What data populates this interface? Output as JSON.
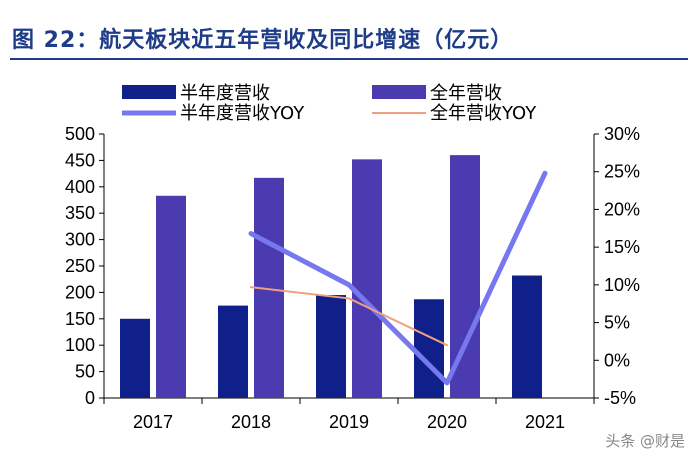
{
  "title": "图 22：航天板块近五年营收及同比增速（亿元）",
  "watermark": "头条 @财是",
  "chart_data": {
    "type": "bar",
    "categories": [
      "2017",
      "2018",
      "2019",
      "2020",
      "2021"
    ],
    "series": [
      {
        "name": "半年度营收",
        "kind": "bar",
        "axis": "left",
        "color": "#10208a",
        "values": [
          150,
          175,
          195,
          187,
          232
        ]
      },
      {
        "name": "全年营收",
        "kind": "bar",
        "axis": "left",
        "color": "#4a3bb0",
        "values": [
          383,
          417,
          452,
          460,
          null
        ]
      },
      {
        "name": "半年度营收YOY",
        "kind": "line",
        "axis": "right",
        "color": "#7777f0",
        "values": [
          null,
          16.8,
          10.0,
          -3.0,
          24.8
        ]
      },
      {
        "name": "全年营收YOY",
        "kind": "line",
        "axis": "right",
        "color": "#f0a080",
        "values": [
          null,
          9.7,
          8.2,
          2.0,
          null
        ]
      }
    ],
    "y_left": {
      "ylim": [
        0,
        500
      ],
      "ticks": [
        "0",
        "50",
        "100",
        "150",
        "200",
        "250",
        "300",
        "350",
        "400",
        "450",
        "500"
      ]
    },
    "y_right": {
      "ylim": [
        -5,
        30
      ],
      "ticks": [
        "-5%",
        "0%",
        "5%",
        "10%",
        "15%",
        "20%",
        "25%",
        "30%"
      ]
    },
    "legend_placement": "top",
    "grid": false
  }
}
